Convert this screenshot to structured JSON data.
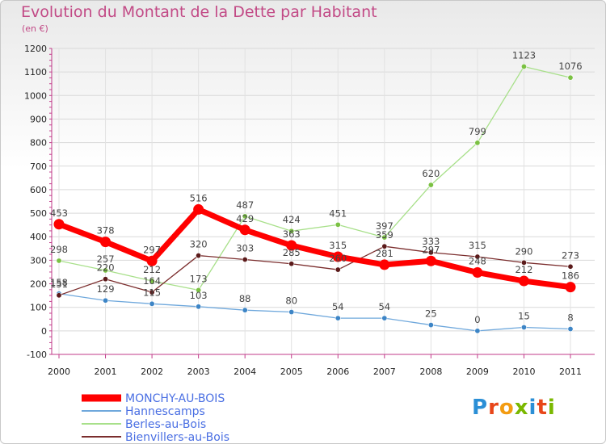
{
  "title": "Evolution du Montant de la Dette par Habitant",
  "unit": "(en €)",
  "logo": {
    "text": "Proxiti",
    "colors": [
      "#2b8fd6",
      "#e8461a",
      "#f39c12",
      "#7ab800",
      "#2b8fd6",
      "#e8461a",
      "#7ab800"
    ]
  },
  "chart_data": {
    "type": "line",
    "x": [
      "2000",
      "2001",
      "2002",
      "2003",
      "2004",
      "2005",
      "2006",
      "2007",
      "2008",
      "2009",
      "2010",
      "2011"
    ],
    "ylim": [
      -100,
      1200
    ],
    "yticks": [
      -100,
      0,
      100,
      200,
      300,
      400,
      500,
      600,
      700,
      800,
      900,
      1000,
      1100,
      1200
    ],
    "grid": true,
    "legend_position": "bottom-left",
    "series": [
      {
        "name": "MONCHY-AU-BOIS",
        "color": "#ff0000",
        "marker": "#ff0000",
        "legend_color": "#4a6fe3",
        "values": [
          453,
          378,
          297,
          516,
          429,
          363,
          315,
          281,
          297,
          248,
          212,
          186
        ],
        "width": 7
      },
      {
        "name": "Hannescamps",
        "color": "#6fa8dc",
        "marker": "#3d85c6",
        "legend_color": "#4a6fe3",
        "values": [
          158,
          129,
          115,
          103,
          88,
          80,
          54,
          54,
          25,
          0,
          15,
          8
        ],
        "width": 1.3
      },
      {
        "name": "Berles-au-Bois",
        "color": "#a8e08a",
        "marker": "#7bc143",
        "legend_color": "#4a6fe3",
        "values": [
          298,
          257,
          212,
          173,
          487,
          424,
          451,
          397,
          620,
          799,
          1123,
          1076
        ],
        "width": 1.3
      },
      {
        "name": "Bienvillers-au-Bois",
        "color": "#7b2d2d",
        "marker": "#5b1a1a",
        "legend_color": "#4a6fe3",
        "values": [
          151,
          220,
          164,
          320,
          303,
          285,
          260,
          359,
          333,
          315,
          290,
          273
        ],
        "width": 1.3
      }
    ]
  }
}
